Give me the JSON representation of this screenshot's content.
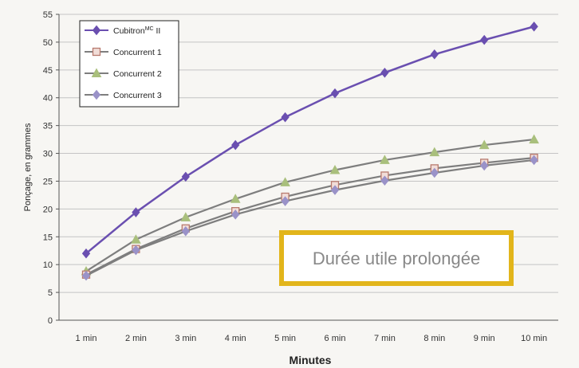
{
  "chart_data": {
    "type": "line",
    "xlabel": "Minutes",
    "ylabel": "Ponçage, en grammes",
    "ylim": [
      0,
      55
    ],
    "yticks": [
      "0",
      "5",
      "10",
      "15",
      "20",
      "25",
      "30",
      "35",
      "40",
      "45",
      "50",
      "55"
    ],
    "categories": [
      "1 min",
      "2 min",
      "3 min",
      "4 min",
      "5 min",
      "6 min",
      "7 min",
      "8 min",
      "9 min",
      "10 min"
    ],
    "grid": true,
    "legend": "top-left",
    "series": [
      {
        "name": "Cubitron",
        "name_sup": "MC",
        "name_suffix": " II",
        "marker": "diamond",
        "color": "#6a4fb0",
        "values": [
          12,
          19.4,
          25.8,
          31.5,
          36.5,
          40.8,
          44.5,
          47.8,
          50.4,
          52.8
        ]
      },
      {
        "name": "Concurrent 1",
        "marker": "square",
        "color": "#b87a6e",
        "values": [
          8.2,
          12.8,
          16.5,
          19.6,
          22.2,
          24.3,
          26,
          27.3,
          28.3,
          29.2
        ]
      },
      {
        "name": "Concurrent 2",
        "marker": "triangle",
        "color": "#a9bf7c",
        "values": [
          8.8,
          14.5,
          18.5,
          21.8,
          24.8,
          27,
          28.8,
          30.2,
          31.5,
          32.5
        ]
      },
      {
        "name": "Concurrent 3",
        "marker": "diamond",
        "color": "#9a92c8",
        "values": [
          8,
          12.6,
          16,
          19,
          21.4,
          23.4,
          25.1,
          26.5,
          27.8,
          28.8
        ]
      }
    ],
    "annotation": "Durée utile prolongée",
    "annotation_border_color": "#e2b51b"
  }
}
